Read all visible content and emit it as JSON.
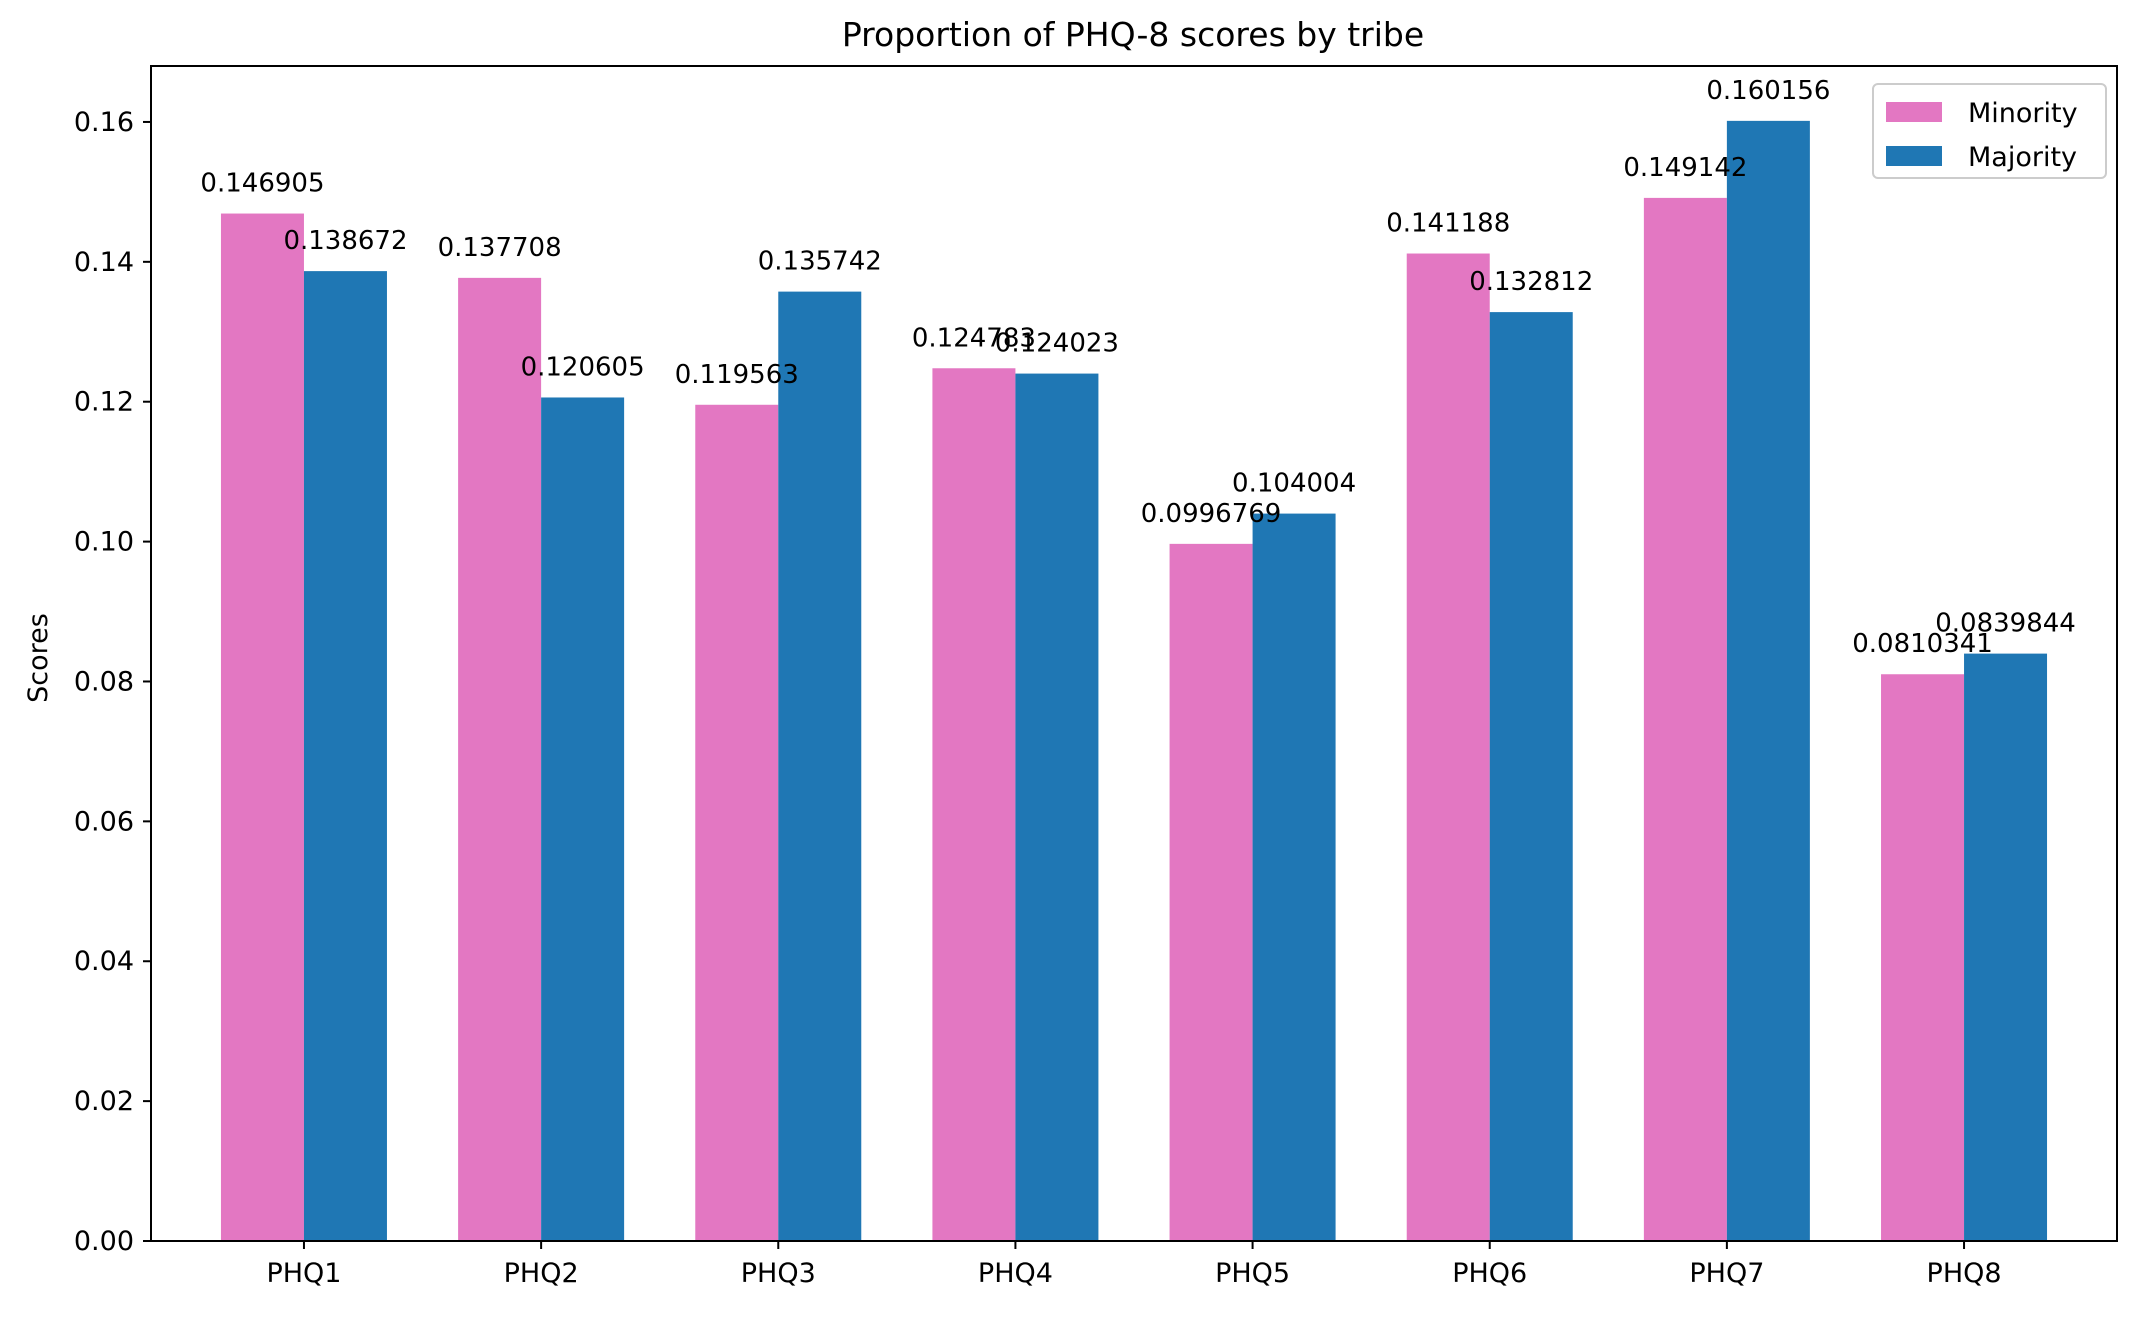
{
  "chart_data": {
    "type": "bar",
    "title": "Proportion of PHQ-8 scores by tribe",
    "xlabel": "",
    "ylabel": "Scores",
    "ylim": [
      0,
      0.168
    ],
    "yticks": [
      "0.00",
      "0.02",
      "0.04",
      "0.06",
      "0.08",
      "0.10",
      "0.12",
      "0.14",
      "0.16"
    ],
    "categories": [
      "PHQ1",
      "PHQ2",
      "PHQ3",
      "PHQ4",
      "PHQ5",
      "PHQ6",
      "PHQ7",
      "PHQ8"
    ],
    "series": [
      {
        "name": "Minority",
        "color": "#e377c2",
        "values": [
          0.146905,
          0.137708,
          0.119563,
          0.124783,
          0.0996769,
          0.141188,
          0.149142,
          0.0810341
        ],
        "labels": [
          "0.146905",
          "0.137708",
          "0.119563",
          "0.124783",
          "0.0996769",
          "0.141188",
          "0.149142",
          "0.0810341"
        ]
      },
      {
        "name": "Majority",
        "color": "#1f77b4",
        "values": [
          0.138672,
          0.120605,
          0.135742,
          0.124023,
          0.104004,
          0.132812,
          0.160156,
          0.0839844
        ],
        "labels": [
          "0.138672",
          "0.120605",
          "0.135742",
          "0.124023",
          "0.104004",
          "0.132812",
          "0.160156",
          "0.0839844"
        ]
      }
    ],
    "legend_position": "top-right",
    "grid": false
  }
}
